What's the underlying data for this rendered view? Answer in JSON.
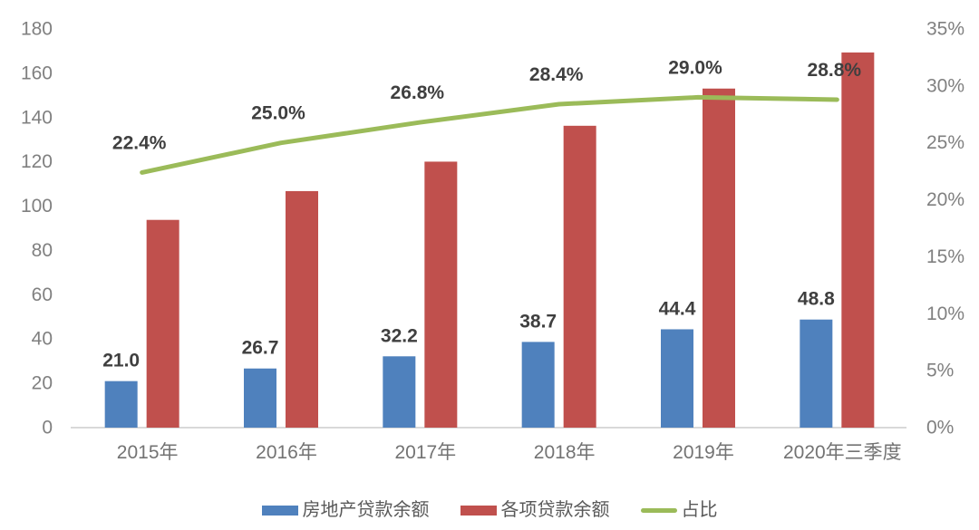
{
  "chart_data": {
    "type": "bar",
    "subtype": "bar-line-combo-dual-axis",
    "title": "",
    "categories": [
      "2015年",
      "2016年",
      "2017年",
      "2018年",
      "2019年",
      "2020年三季度"
    ],
    "series": [
      {
        "name": "房地产贷款余额",
        "type": "bar",
        "axis": "left",
        "color": "#4F81BD",
        "values": [
          21.0,
          26.7,
          32.2,
          38.7,
          44.4,
          48.8
        ],
        "labels": [
          "21.0",
          "26.7",
          "32.2",
          "38.7",
          "44.4",
          "48.8"
        ]
      },
      {
        "name": "各项贷款余额",
        "type": "bar",
        "axis": "left",
        "color": "#C0504D",
        "values": [
          93.8,
          106.8,
          120.1,
          136.3,
          153.1,
          169.4
        ],
        "labels": []
      },
      {
        "name": "占比",
        "type": "line",
        "axis": "right",
        "color": "#9BBB59",
        "values": [
          22.4,
          25.0,
          26.8,
          28.4,
          29.0,
          28.8
        ],
        "labels": [
          "22.4%",
          "25.0%",
          "26.8%",
          "28.4%",
          "29.0%",
          "28.8%"
        ]
      }
    ],
    "left_axis": {
      "min": 0,
      "max": 180,
      "step": 20,
      "ticks": [
        "0",
        "20",
        "40",
        "60",
        "80",
        "100",
        "120",
        "140",
        "160",
        "180"
      ]
    },
    "right_axis": {
      "min": 0,
      "max": 35,
      "step": 5,
      "ticks": [
        "0%",
        "5%",
        "10%",
        "15%",
        "20%",
        "25%",
        "30%",
        "35%"
      ]
    },
    "grid": false,
    "legend_position": "bottom",
    "axis_line_color": "#D9D9D9",
    "tick_text_color": "#808080",
    "category_text_color": "#737373",
    "data_label_color": "#3F3F3F"
  }
}
